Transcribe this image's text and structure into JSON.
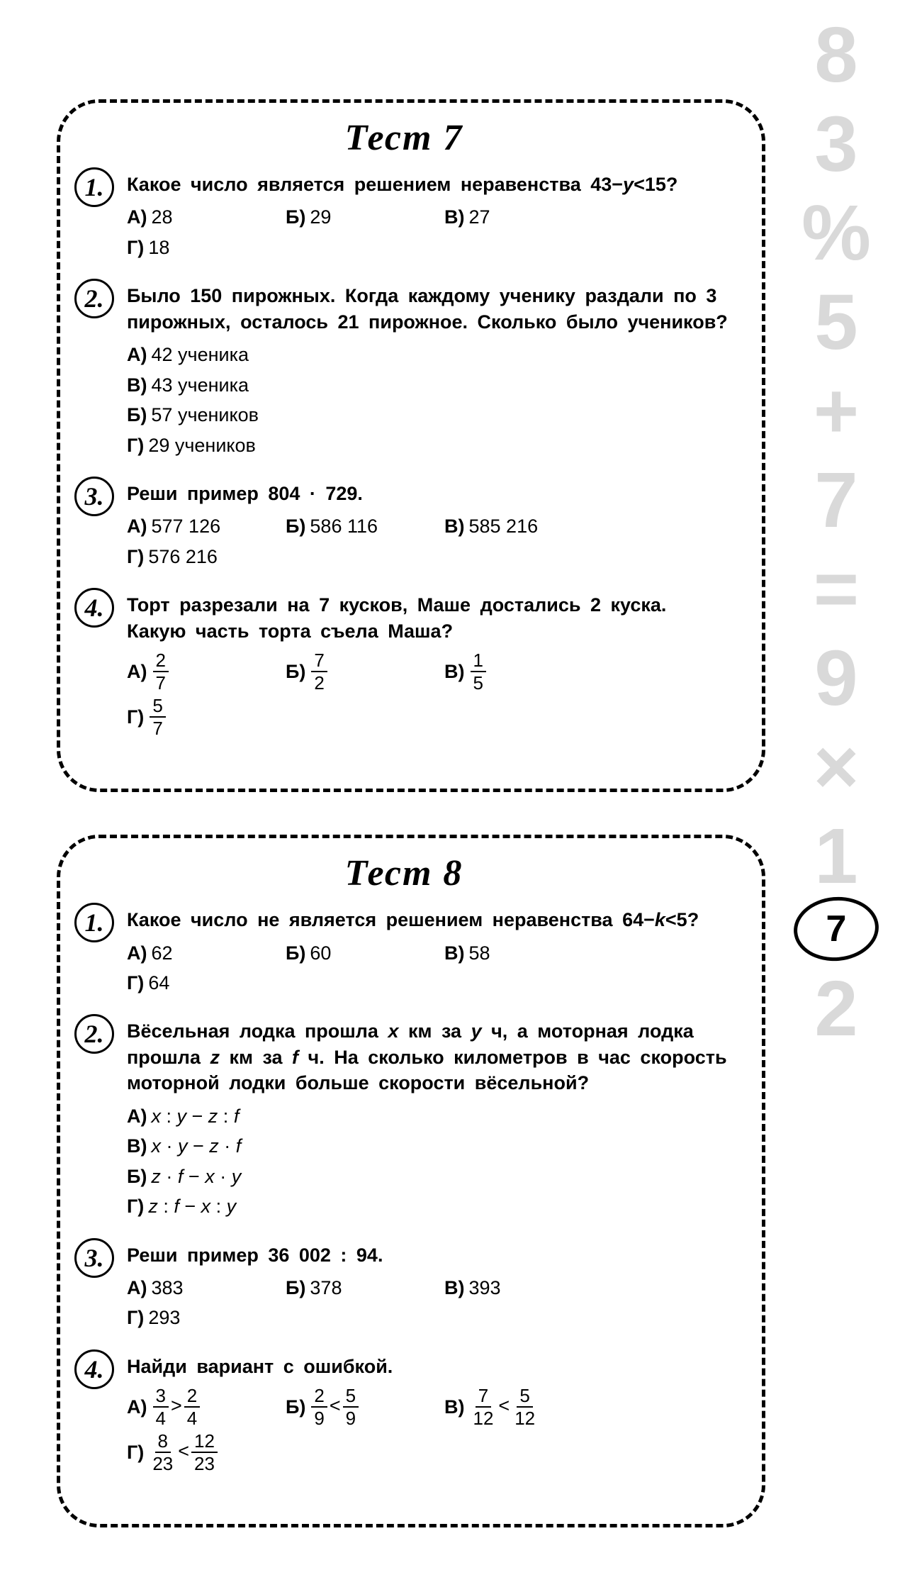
{
  "sidebar": {
    "chars": [
      "8",
      "3",
      "%",
      "5",
      "+",
      "7",
      "=",
      "9",
      "×",
      "1",
      "2"
    ],
    "pagenum": "7",
    "color": "#d9d9d9"
  },
  "tests": [
    {
      "title": "Тест  7",
      "questions": [
        {
          "num": "1.",
          "prompt_html": "Какое число является решением неравенства 43−<i>y</i><15?",
          "cols": 4,
          "options": [
            {
              "letter": "А)",
              "html": "28"
            },
            {
              "letter": "Б)",
              "html": "29"
            },
            {
              "letter": "В)",
              "html": "27"
            },
            {
              "letter": "Г)",
              "html": "18"
            }
          ]
        },
        {
          "num": "2.",
          "prompt_html": "Было 150 пирожных. Когда каждому ученику раздали по 3 пирожных, осталось 21 пирожное. Сколько было учеников?",
          "cols": 2,
          "options": [
            {
              "letter": "А)",
              "html": "42 ученика"
            },
            {
              "letter": "В)",
              "html": "43 ученика"
            },
            {
              "letter": "Б)",
              "html": "57 учеников"
            },
            {
              "letter": "Г)",
              "html": "29 учеников"
            }
          ]
        },
        {
          "num": "3.",
          "prompt_html": "Реши пример 804 · 729.",
          "cols": 4,
          "options": [
            {
              "letter": "А)",
              "html": "577 126"
            },
            {
              "letter": "Б)",
              "html": "586 116"
            },
            {
              "letter": "В)",
              "html": "585 216"
            },
            {
              "letter": "Г)",
              "html": "576 216"
            }
          ]
        },
        {
          "num": "4.",
          "prompt_html": "Торт разрезали на 7 кусков, Маше достались 2 куска. Какую часть торта съела Маша?",
          "cols": 4,
          "options": [
            {
              "letter": "А)",
              "frac": {
                "n": "2",
                "d": "7"
              }
            },
            {
              "letter": "Б)",
              "frac": {
                "n": "7",
                "d": "2"
              }
            },
            {
              "letter": "В)",
              "frac": {
                "n": "1",
                "d": "5"
              }
            },
            {
              "letter": "Г)",
              "frac": {
                "n": "5",
                "d": "7"
              }
            }
          ]
        }
      ]
    },
    {
      "title": "Тест  8",
      "questions": [
        {
          "num": "1.",
          "prompt_html": "Какое число не является решением неравенства 64−<i>k</i><5?",
          "cols": 4,
          "options": [
            {
              "letter": "А)",
              "html": "62"
            },
            {
              "letter": "Б)",
              "html": "60"
            },
            {
              "letter": "В)",
              "html": "58"
            },
            {
              "letter": "Г)",
              "html": "64"
            }
          ]
        },
        {
          "num": "2.",
          "prompt_html": "Вёсельная лодка прошла <i>x</i> км за <i>y</i> ч, а моторная лодка прошла <i>z</i> км за <i>f</i> ч. На сколько километров в час скорость моторной лодки больше скорости вёсельной?",
          "cols": 2,
          "options": [
            {
              "letter": "А)",
              "html": "<i>x</i> : <i>y</i> − <i>z</i> : <i>f</i>"
            },
            {
              "letter": "В)",
              "html": "<i>x</i> · <i>y</i> − <i>z</i> · <i>f</i>"
            },
            {
              "letter": "Б)",
              "html": "<i>z</i> · <i>f</i> − <i>x</i> · <i>y</i>"
            },
            {
              "letter": "Г)",
              "html": "<i>z</i> : <i>f</i> − <i>x</i> : <i>y</i>"
            }
          ]
        },
        {
          "num": "3.",
          "prompt_html": "Реши пример 36 002 : 94.",
          "cols": 4,
          "options": [
            {
              "letter": "А)",
              "html": "383"
            },
            {
              "letter": "Б)",
              "html": "378"
            },
            {
              "letter": "В)",
              "html": "393"
            },
            {
              "letter": "Г)",
              "html": "293"
            }
          ]
        },
        {
          "num": "4.",
          "prompt_html": "Найди вариант с ошибкой.",
          "cols": 4,
          "options": [
            {
              "letter": "А)",
              "fracs": [
                {
                  "n": "3",
                  "d": "4"
                },
                ">",
                {
                  "n": "2",
                  "d": "4"
                }
              ]
            },
            {
              "letter": "Б)",
              "fracs": [
                {
                  "n": "2",
                  "d": "9"
                },
                "<",
                {
                  "n": "5",
                  "d": "9"
                }
              ]
            },
            {
              "letter": "В)",
              "fracs": [
                {
                  "n": "7",
                  "d": "12"
                },
                "<",
                {
                  "n": "5",
                  "d": "12"
                }
              ]
            },
            {
              "letter": "Г)",
              "fracs": [
                {
                  "n": "8",
                  "d": "23"
                },
                "<",
                {
                  "n": "12",
                  "d": "23"
                }
              ]
            }
          ]
        }
      ]
    }
  ]
}
